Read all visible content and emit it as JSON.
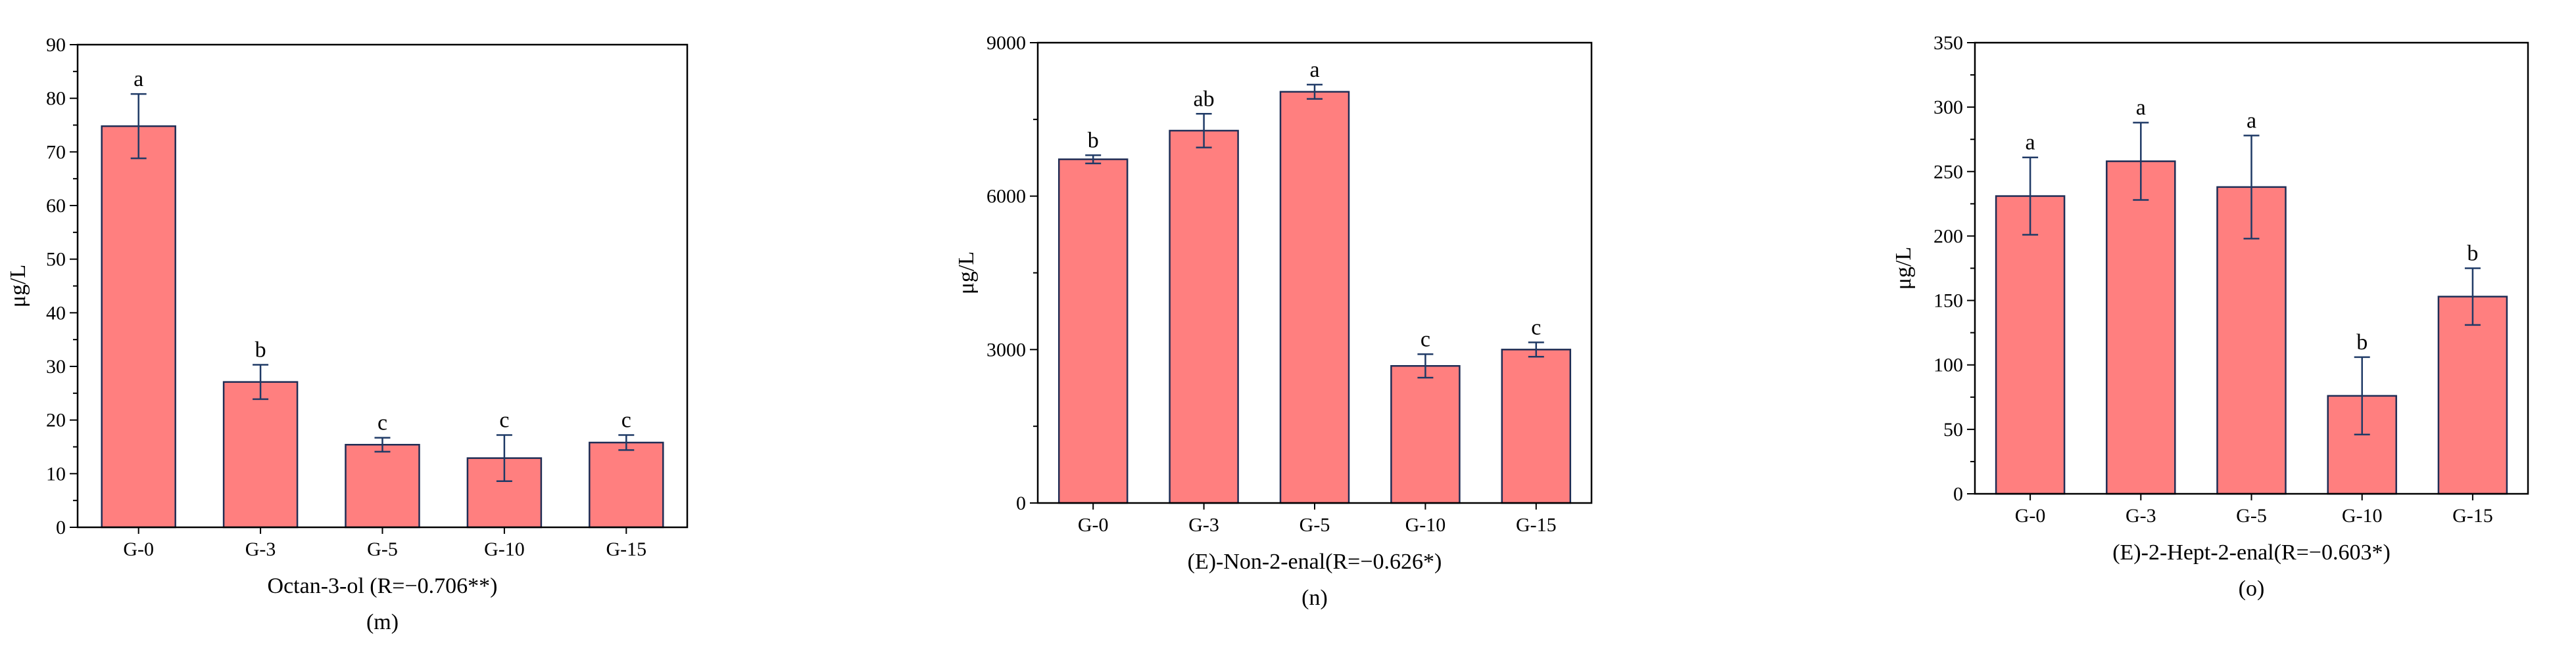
{
  "chart_data": [
    {
      "type": "bar",
      "panel": "(m)",
      "xlabel": "Octan-3-ol (R=−0.706**)",
      "ylabel": "μg/L",
      "categories": [
        "G-0",
        "G-3",
        "G-5",
        "G-10",
        "G-15"
      ],
      "values": [
        74.8,
        27.1,
        15.4,
        12.9,
        15.8
      ],
      "errors": [
        6.0,
        3.2,
        1.3,
        4.3,
        1.4
      ],
      "letters": [
        "a",
        "b",
        "c",
        "c",
        "c"
      ],
      "ylim": [
        0,
        90
      ],
      "yticks": [
        0,
        10,
        20,
        30,
        40,
        50,
        60,
        70,
        80,
        90
      ],
      "bar_color": "#ff7f7f",
      "edge_color": "#1f2d55",
      "error_color": "#1f3a66"
    },
    {
      "type": "bar",
      "panel": "(n)",
      "xlabel": "(E)-Non-2-enal(R=−0.626*)",
      "ylabel": "μg/L",
      "categories": [
        "G-0",
        "G-3",
        "G-5",
        "G-10",
        "G-15"
      ],
      "values": [
        6720,
        7280,
        8040,
        2680,
        3000
      ],
      "errors": [
        80,
        330,
        140,
        230,
        140
      ],
      "letters": [
        "b",
        "ab",
        "a",
        "c",
        "c"
      ],
      "ylim": [
        0,
        9000
      ],
      "yticks": [
        0,
        3000,
        6000,
        9000
      ],
      "bar_color": "#ff7f7f",
      "edge_color": "#1f2d55",
      "error_color": "#1f3a66"
    },
    {
      "type": "bar",
      "panel": "(o)",
      "xlabel": "(E)-2-Hept-2-enal(R=−0.603*)",
      "ylabel": "μg/L",
      "categories": [
        "G-0",
        "G-3",
        "G-5",
        "G-10",
        "G-15"
      ],
      "values": [
        231,
        258,
        238,
        76,
        153
      ],
      "errors": [
        30,
        30,
        40,
        30,
        22
      ],
      "letters": [
        "a",
        "a",
        "a",
        "b",
        "b"
      ],
      "ylim": [
        0,
        350
      ],
      "yticks": [
        0,
        50,
        100,
        150,
        200,
        250,
        300,
        350
      ],
      "bar_color": "#ff7f7f",
      "edge_color": "#1f2d55",
      "error_color": "#1f3a66"
    }
  ]
}
